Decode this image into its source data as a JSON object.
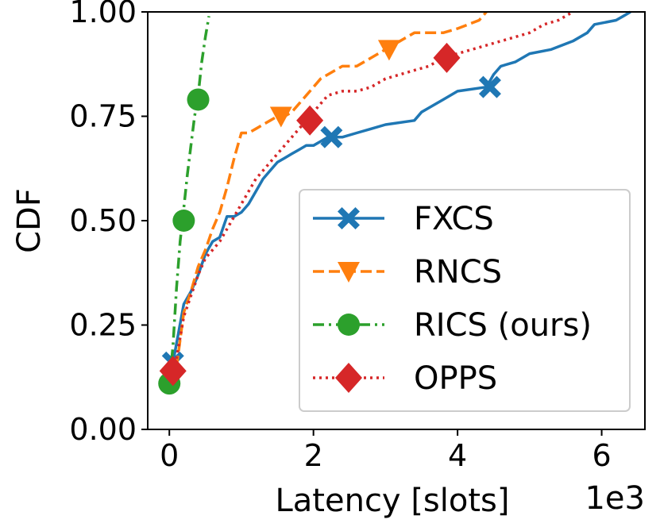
{
  "chart_data": {
    "type": "line",
    "xlabel": "Latency [slots]",
    "ylabel": "CDF",
    "x_offset_text": "1e3",
    "xlim": [
      -0.3,
      6.6
    ],
    "ylim": [
      0.0,
      1.0
    ],
    "xticks": [
      0,
      2,
      4,
      6
    ],
    "xtick_labels": [
      "0",
      "2",
      "4",
      "6"
    ],
    "yticks": [
      0.0,
      0.25,
      0.5,
      0.75,
      1.0
    ],
    "ytick_labels": [
      "0.00",
      "0.25",
      "0.50",
      "0.75",
      "1.00"
    ],
    "grid": false,
    "legend_position": "lower-right",
    "series": [
      {
        "name": "FXCS",
        "color": "#1f77b4",
        "linestyle": "solid",
        "marker": "x-filled",
        "points": [
          [
            0.0,
            0.15
          ],
          [
            0.05,
            0.16
          ],
          [
            0.2,
            0.3
          ],
          [
            0.3,
            0.33
          ],
          [
            0.4,
            0.37
          ],
          [
            0.5,
            0.42
          ],
          [
            0.6,
            0.45
          ],
          [
            0.7,
            0.46
          ],
          [
            0.8,
            0.51
          ],
          [
            0.9,
            0.51
          ],
          [
            1.0,
            0.52
          ],
          [
            1.1,
            0.54
          ],
          [
            1.2,
            0.57
          ],
          [
            1.3,
            0.6
          ],
          [
            1.4,
            0.62
          ],
          [
            1.5,
            0.64
          ],
          [
            1.6,
            0.65
          ],
          [
            1.7,
            0.66
          ],
          [
            1.8,
            0.67
          ],
          [
            1.9,
            0.68
          ],
          [
            2.0,
            0.68
          ],
          [
            2.1,
            0.69
          ],
          [
            2.2,
            0.7
          ],
          [
            2.4,
            0.7
          ],
          [
            2.6,
            0.71
          ],
          [
            2.8,
            0.72
          ],
          [
            3.0,
            0.73
          ],
          [
            3.4,
            0.74
          ],
          [
            3.5,
            0.76
          ],
          [
            3.6,
            0.77
          ],
          [
            3.8,
            0.79
          ],
          [
            4.0,
            0.81
          ],
          [
            4.4,
            0.82
          ],
          [
            4.5,
            0.85
          ],
          [
            4.6,
            0.87
          ],
          [
            4.8,
            0.88
          ],
          [
            5.0,
            0.9
          ],
          [
            5.3,
            0.91
          ],
          [
            5.6,
            0.93
          ],
          [
            5.8,
            0.95
          ],
          [
            5.9,
            0.97
          ],
          [
            6.2,
            0.98
          ],
          [
            6.3,
            0.99
          ],
          [
            6.4,
            1.0
          ]
        ],
        "markers": [
          [
            0.05,
            0.16
          ],
          [
            2.25,
            0.7
          ],
          [
            4.45,
            0.82
          ]
        ]
      },
      {
        "name": "RNCS",
        "color": "#ff7f0e",
        "linestyle": "dashed",
        "marker": "triangle-down",
        "points": [
          [
            0.1,
            0.15
          ],
          [
            0.2,
            0.28
          ],
          [
            0.3,
            0.33
          ],
          [
            0.4,
            0.39
          ],
          [
            0.5,
            0.43
          ],
          [
            0.6,
            0.48
          ],
          [
            0.7,
            0.52
          ],
          [
            0.8,
            0.58
          ],
          [
            0.9,
            0.65
          ],
          [
            1.0,
            0.71
          ],
          [
            1.1,
            0.71
          ],
          [
            1.2,
            0.72
          ],
          [
            1.3,
            0.73
          ],
          [
            1.4,
            0.74
          ],
          [
            1.5,
            0.75
          ],
          [
            1.6,
            0.75
          ],
          [
            1.7,
            0.76
          ],
          [
            1.8,
            0.78
          ],
          [
            1.9,
            0.8
          ],
          [
            2.0,
            0.82
          ],
          [
            2.1,
            0.84
          ],
          [
            2.2,
            0.85
          ],
          [
            2.4,
            0.87
          ],
          [
            2.6,
            0.87
          ],
          [
            2.8,
            0.89
          ],
          [
            3.0,
            0.91
          ],
          [
            3.2,
            0.93
          ],
          [
            3.4,
            0.95
          ],
          [
            3.8,
            0.95
          ],
          [
            4.0,
            0.96
          ],
          [
            4.3,
            0.98
          ],
          [
            4.4,
            1.0
          ]
        ],
        "markers": [
          [
            1.55,
            0.75
          ],
          [
            3.05,
            0.91
          ]
        ]
      },
      {
        "name": "RICS (ours)",
        "color": "#2ca02c",
        "linestyle": "dashdot",
        "marker": "circle",
        "points": [
          [
            0.0,
            0.11
          ],
          [
            0.05,
            0.2
          ],
          [
            0.1,
            0.34
          ],
          [
            0.15,
            0.45
          ],
          [
            0.2,
            0.53
          ],
          [
            0.25,
            0.61
          ],
          [
            0.3,
            0.68
          ],
          [
            0.35,
            0.75
          ],
          [
            0.4,
            0.8
          ],
          [
            0.45,
            0.88
          ],
          [
            0.5,
            0.94
          ],
          [
            0.55,
            0.99
          ]
        ],
        "markers": [
          [
            0.0,
            0.11
          ],
          [
            0.2,
            0.5
          ],
          [
            0.4,
            0.79
          ]
        ]
      },
      {
        "name": "OPPS",
        "color": "#d62728",
        "linestyle": "dotted",
        "marker": "diamond",
        "points": [
          [
            0.05,
            0.14
          ],
          [
            0.1,
            0.17
          ],
          [
            0.2,
            0.27
          ],
          [
            0.3,
            0.32
          ],
          [
            0.4,
            0.37
          ],
          [
            0.5,
            0.41
          ],
          [
            0.6,
            0.43
          ],
          [
            0.7,
            0.45
          ],
          [
            0.8,
            0.48
          ],
          [
            0.9,
            0.51
          ],
          [
            1.0,
            0.54
          ],
          [
            1.1,
            0.57
          ],
          [
            1.2,
            0.6
          ],
          [
            1.3,
            0.62
          ],
          [
            1.4,
            0.64
          ],
          [
            1.5,
            0.66
          ],
          [
            1.6,
            0.68
          ],
          [
            1.7,
            0.7
          ],
          [
            1.8,
            0.72
          ],
          [
            1.9,
            0.74
          ],
          [
            2.0,
            0.76
          ],
          [
            2.1,
            0.78
          ],
          [
            2.2,
            0.8
          ],
          [
            2.4,
            0.81
          ],
          [
            2.6,
            0.81
          ],
          [
            2.8,
            0.82
          ],
          [
            3.0,
            0.84
          ],
          [
            3.2,
            0.85
          ],
          [
            3.4,
            0.86
          ],
          [
            3.6,
            0.87
          ],
          [
            3.8,
            0.89
          ],
          [
            4.0,
            0.9
          ],
          [
            4.2,
            0.91
          ],
          [
            4.4,
            0.92
          ],
          [
            4.6,
            0.93
          ],
          [
            4.8,
            0.94
          ],
          [
            5.0,
            0.95
          ],
          [
            5.2,
            0.97
          ],
          [
            5.4,
            0.98
          ],
          [
            5.6,
            1.0
          ]
        ],
        "markers": [
          [
            0.05,
            0.14
          ],
          [
            1.95,
            0.74
          ],
          [
            3.85,
            0.89
          ]
        ]
      }
    ]
  }
}
